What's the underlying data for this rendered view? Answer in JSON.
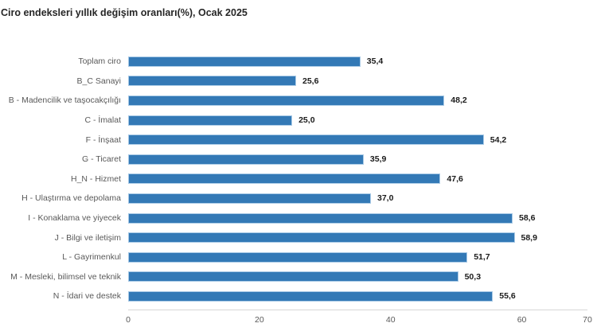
{
  "title": "Ciro endeksleri yıllık değişim oranları(%), Ocak 2025",
  "chart_data": {
    "type": "bar",
    "orientation": "horizontal",
    "title": "Ciro endeksleri yıllık değişim oranları(%), Ocak 2025",
    "categories": [
      "Toplam ciro",
      "B_C   Sanayi",
      "B - Madencilik ve taşocakçılığı",
      "C - İmalat",
      "F - İnşaat",
      "G - Ticaret",
      "H_N - Hizmet",
      "H - Ulaştırma ve depolama",
      "I - Konaklama ve yiyecek",
      "J - Bilgi ve iletişim",
      "L - Gayrimenkul",
      "M - Mesleki, bilimsel ve teknik",
      "N - İdari ve destek"
    ],
    "values": [
      35.4,
      25.6,
      48.2,
      25.0,
      54.2,
      35.9,
      47.6,
      37.0,
      58.6,
      58.9,
      51.7,
      50.3,
      55.6
    ],
    "value_labels": [
      "35,4",
      "25,6",
      "48,2",
      "25,0",
      "54,2",
      "35,9",
      "47,6",
      "37,0",
      "58,6",
      "58,9",
      "51,7",
      "50,3",
      "55,6"
    ],
    "xlabel": "",
    "ylabel": "",
    "xlim": [
      0,
      70
    ],
    "x_ticks": [
      0,
      20,
      40,
      60,
      70
    ],
    "x_tick_labels": [
      "0",
      "20",
      "40",
      "60",
      "70"
    ],
    "grid": false,
    "legend": false,
    "bar_color": "#3379b6",
    "bar_border_color": "#a9cae6",
    "axis_line_color": "#d6d6d6",
    "label_color": "#595959",
    "value_label_color": "#1a1a1a",
    "title_color": "#262626"
  }
}
